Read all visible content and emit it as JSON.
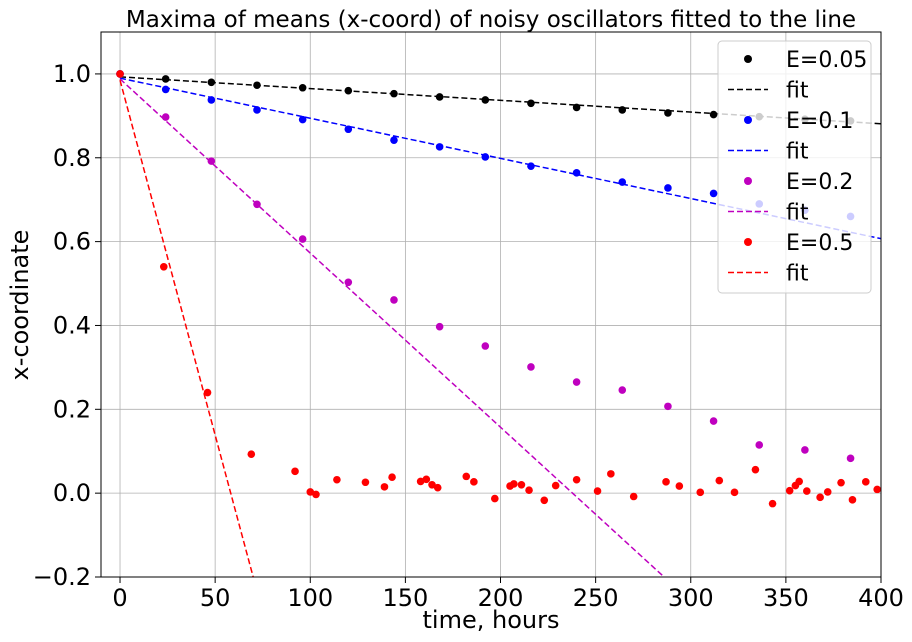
{
  "chart_data": {
    "type": "scatter",
    "title": "Maxima of means (x-coord) of noisy oscillators fitted to the line",
    "xlabel": "time, hours",
    "ylabel": "x-coordinate",
    "xlim": [
      -10,
      400
    ],
    "ylim": [
      -0.2,
      1.1
    ],
    "xticks": [
      0,
      50,
      100,
      150,
      200,
      250,
      300,
      350,
      400
    ],
    "yticks": [
      -0.2,
      0.0,
      0.2,
      0.4,
      0.6,
      0.8,
      1.0
    ],
    "xtick_labels": [
      "0",
      "50",
      "100",
      "150",
      "200",
      "250",
      "300",
      "350",
      "400"
    ],
    "ytick_labels": [
      "−0.2",
      "0.0",
      "0.2",
      "0.4",
      "0.6",
      "0.8",
      "1.0"
    ],
    "grid": true,
    "legend_position": "top-right",
    "series": [
      {
        "name": "E=0.05",
        "color": "#000000",
        "points": [
          [
            0,
            1.0
          ],
          [
            24,
            0.988
          ],
          [
            48,
            0.98
          ],
          [
            72,
            0.973
          ],
          [
            96,
            0.967
          ],
          [
            120,
            0.96
          ],
          [
            144,
            0.953
          ],
          [
            168,
            0.945
          ],
          [
            192,
            0.938
          ],
          [
            216,
            0.93
          ],
          [
            240,
            0.92
          ],
          [
            264,
            0.914
          ],
          [
            288,
            0.907
          ],
          [
            312,
            0.903
          ],
          [
            336,
            0.898
          ],
          [
            360,
            0.892
          ],
          [
            384,
            0.888
          ]
        ],
        "fit_name": "fit",
        "fit": [
          [
            0,
            0.993
          ],
          [
            400,
            0.881
          ]
        ]
      },
      {
        "name": "E=0.1",
        "color": "#0000ff",
        "points": [
          [
            0,
            1.0
          ],
          [
            24,
            0.963
          ],
          [
            48,
            0.938
          ],
          [
            72,
            0.914
          ],
          [
            96,
            0.891
          ],
          [
            120,
            0.868
          ],
          [
            144,
            0.842
          ],
          [
            168,
            0.826
          ],
          [
            192,
            0.802
          ],
          [
            216,
            0.78
          ],
          [
            240,
            0.764
          ],
          [
            264,
            0.742
          ],
          [
            288,
            0.728
          ],
          [
            312,
            0.715
          ],
          [
            336,
            0.69
          ],
          [
            360,
            0.675
          ],
          [
            384,
            0.66
          ]
        ],
        "fit_name": "fit",
        "fit": [
          [
            0,
            0.99
          ],
          [
            400,
            0.607
          ]
        ]
      },
      {
        "name": "E=0.2",
        "color": "#bf00bf",
        "points": [
          [
            0,
            1.0
          ],
          [
            24,
            0.897
          ],
          [
            48,
            0.792
          ],
          [
            72,
            0.689
          ],
          [
            96,
            0.606
          ],
          [
            120,
            0.503
          ],
          [
            144,
            0.461
          ],
          [
            168,
            0.397
          ],
          [
            192,
            0.351
          ],
          [
            216,
            0.301
          ],
          [
            240,
            0.265
          ],
          [
            264,
            0.246
          ],
          [
            288,
            0.207
          ],
          [
            312,
            0.172
          ],
          [
            336,
            0.115
          ],
          [
            360,
            0.103
          ],
          [
            384,
            0.083
          ]
        ],
        "fit_name": "fit",
        "fit": [
          [
            0,
            0.988
          ],
          [
            286,
            -0.2
          ]
        ]
      },
      {
        "name": "E=0.5",
        "color": "#ff0000",
        "points": [
          [
            0,
            1.0
          ],
          [
            23,
            0.54
          ],
          [
            46,
            0.24
          ],
          [
            69,
            0.093
          ],
          [
            92,
            0.052
          ],
          [
            100,
            0.003
          ],
          [
            103,
            -0.003
          ],
          [
            114,
            0.032
          ],
          [
            129,
            0.026
          ],
          [
            139,
            0.015
          ],
          [
            143,
            0.038
          ],
          [
            158,
            0.028
          ],
          [
            161,
            0.033
          ],
          [
            164,
            0.02
          ],
          [
            167,
            0.013
          ],
          [
            182,
            0.04
          ],
          [
            186,
            0.027
          ],
          [
            197,
            -0.013
          ],
          [
            205,
            0.017
          ],
          [
            207,
            0.022
          ],
          [
            211,
            0.02
          ],
          [
            215,
            0.007
          ],
          [
            223,
            -0.017
          ],
          [
            229,
            0.018
          ],
          [
            240,
            0.032
          ],
          [
            251,
            0.005
          ],
          [
            258,
            0.046
          ],
          [
            270,
            -0.008
          ],
          [
            287,
            0.027
          ],
          [
            294,
            0.017
          ],
          [
            305,
            0.002
          ],
          [
            315,
            0.03
          ],
          [
            323,
            0.002
          ],
          [
            334,
            0.056
          ],
          [
            343,
            -0.025
          ],
          [
            352,
            0.006
          ],
          [
            355,
            0.018
          ],
          [
            357,
            0.028
          ],
          [
            361,
            0.005
          ],
          [
            368,
            -0.01
          ],
          [
            372,
            0.003
          ],
          [
            379,
            0.025
          ],
          [
            385,
            -0.016
          ],
          [
            392,
            0.027
          ],
          [
            398,
            0.009
          ]
        ],
        "fit_name": "fit",
        "fit": [
          [
            0,
            0.985
          ],
          [
            70,
            -0.2
          ]
        ]
      }
    ]
  }
}
